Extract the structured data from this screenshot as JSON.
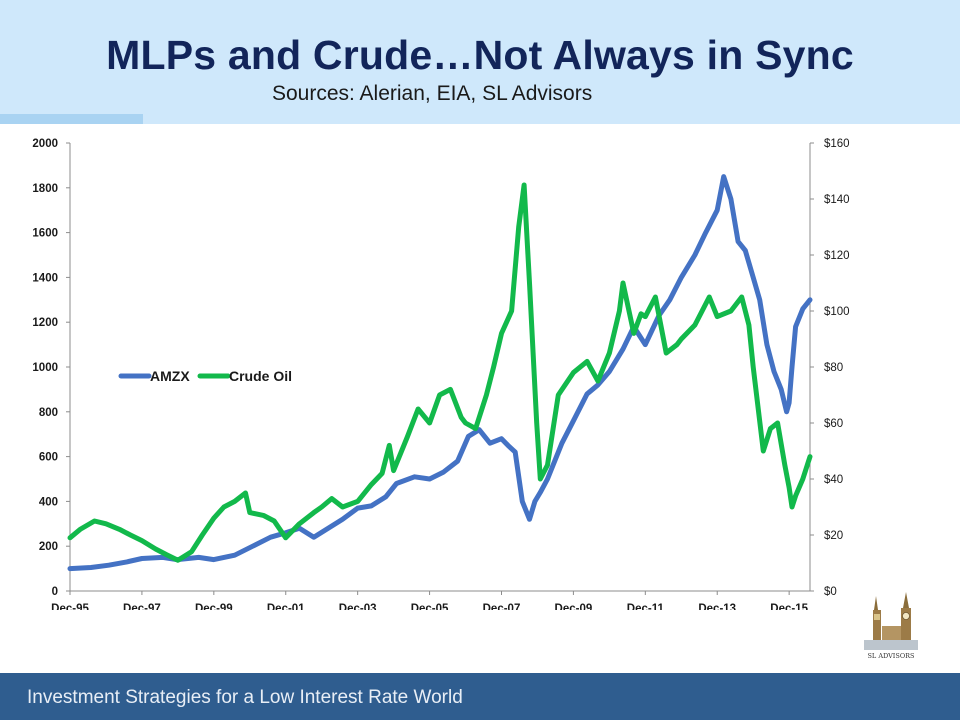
{
  "header": {
    "title": "MLPs and Crude…Not Always in Sync",
    "subtitle": "Sources: Alerian, EIA, SL Advisors"
  },
  "footer": {
    "text": "Investment Strategies for a Low Interest Rate World"
  },
  "logo": {
    "text": "SL ADVISORS"
  },
  "colors": {
    "amzx": "#4472c4",
    "crude": "#12b94b",
    "header_bg": "#cfe8fb",
    "footer_bg": "#2f5d8f",
    "title": "#12255a"
  },
  "chart_data": {
    "type": "line",
    "title": "",
    "xlabel": "",
    "ylabel_left": "",
    "ylabel_right": "",
    "x_tick_labels": [
      "Dec-95",
      "Dec-97",
      "Dec-99",
      "Dec-01",
      "Dec-03",
      "Dec-05",
      "Dec-07",
      "Dec-09",
      "Dec-11",
      "Dec-13",
      "Dec-15"
    ],
    "x_range": [
      1995.92,
      2016.5
    ],
    "y_left": {
      "range": [
        0,
        2000
      ],
      "ticks": [
        "0",
        "200",
        "400",
        "600",
        "800",
        "1000",
        "1200",
        "1400",
        "1600",
        "1800",
        "2000"
      ]
    },
    "y_right": {
      "range": [
        0,
        160
      ],
      "ticks": [
        "$0",
        "$20",
        "$40",
        "$60",
        "$80",
        "$100",
        "$120",
        "$140",
        "$160"
      ]
    },
    "legend": {
      "position": "left-middle",
      "entries": [
        "AMZX",
        "Crude Oil"
      ]
    },
    "grid": false,
    "series": [
      {
        "name": "AMZX",
        "axis": "left",
        "x": [
          1995.92,
          1996.5,
          1997.0,
          1997.5,
          1997.92,
          1998.5,
          1998.9,
          1999.5,
          1999.92,
          2000.5,
          2001.0,
          2001.5,
          2001.92,
          2002.3,
          2002.7,
          2003.0,
          2003.5,
          2003.92,
          2004.3,
          2004.7,
          2005.0,
          2005.5,
          2005.92,
          2006.3,
          2006.7,
          2007.0,
          2007.3,
          2007.6,
          2007.92,
          2008.1,
          2008.3,
          2008.5,
          2008.7,
          2008.85,
          2009.0,
          2009.2,
          2009.4,
          2009.6,
          2009.92,
          2010.3,
          2010.6,
          2010.92,
          2011.3,
          2011.6,
          2011.92,
          2012.3,
          2012.6,
          2012.92,
          2013.3,
          2013.6,
          2013.92,
          2014.1,
          2014.3,
          2014.5,
          2014.7,
          2014.92,
          2015.1,
          2015.3,
          2015.5,
          2015.7,
          2015.85,
          2015.92,
          2016.0,
          2016.1,
          2016.3,
          2016.5
        ],
        "values": [
          100,
          105,
          115,
          130,
          145,
          150,
          140,
          150,
          140,
          160,
          200,
          240,
          260,
          280,
          240,
          270,
          320,
          370,
          380,
          420,
          480,
          510,
          500,
          530,
          580,
          690,
          720,
          660,
          680,
          650,
          620,
          400,
          320,
          400,
          440,
          500,
          580,
          660,
          760,
          880,
          920,
          980,
          1080,
          1180,
          1100,
          1230,
          1300,
          1400,
          1500,
          1600,
          1700,
          1850,
          1750,
          1560,
          1520,
          1400,
          1300,
          1100,
          980,
          900,
          800,
          840,
          1000,
          1180,
          1260,
          1300
        ]
      },
      {
        "name": "Crude Oil",
        "axis": "right",
        "x": [
          1995.92,
          1996.2,
          1996.6,
          1996.92,
          1997.3,
          1997.6,
          1997.92,
          1998.3,
          1998.6,
          1998.92,
          1999.3,
          1999.6,
          1999.92,
          2000.2,
          2000.5,
          2000.8,
          2000.92,
          2001.3,
          2001.6,
          2001.92,
          2002.3,
          2002.7,
          2002.92,
          2003.2,
          2003.5,
          2003.92,
          2004.3,
          2004.6,
          2004.8,
          2004.92,
          2005.3,
          2005.6,
          2005.92,
          2006.2,
          2006.5,
          2006.8,
          2006.92,
          2007.2,
          2007.5,
          2007.7,
          2007.92,
          2008.2,
          2008.4,
          2008.55,
          2008.7,
          2008.9,
          2009.0,
          2009.2,
          2009.5,
          2009.92,
          2010.3,
          2010.6,
          2010.92,
          2011.2,
          2011.3,
          2011.6,
          2011.8,
          2011.92,
          2012.2,
          2012.5,
          2012.8,
          2012.92,
          2013.3,
          2013.7,
          2013.92,
          2014.3,
          2014.6,
          2014.8,
          2014.92,
          2015.2,
          2015.4,
          2015.6,
          2015.8,
          2015.92,
          2016.0,
          2016.1,
          2016.3,
          2016.5
        ],
        "values": [
          19,
          22,
          25,
          24,
          22,
          20,
          18,
          15,
          13,
          11,
          14,
          20,
          26,
          30,
          32,
          35,
          28,
          27,
          25,
          19,
          24,
          28,
          30,
          33,
          30,
          32,
          38,
          42,
          52,
          43,
          55,
          65,
          60,
          70,
          72,
          62,
          60,
          58,
          70,
          80,
          92,
          100,
          130,
          145,
          110,
          60,
          40,
          45,
          70,
          78,
          82,
          75,
          85,
          100,
          110,
          92,
          99,
          98,
          105,
          85,
          88,
          90,
          95,
          105,
          98,
          100,
          105,
          95,
          80,
          50,
          58,
          60,
          45,
          37,
          30,
          34,
          40,
          48
        ]
      }
    ]
  }
}
